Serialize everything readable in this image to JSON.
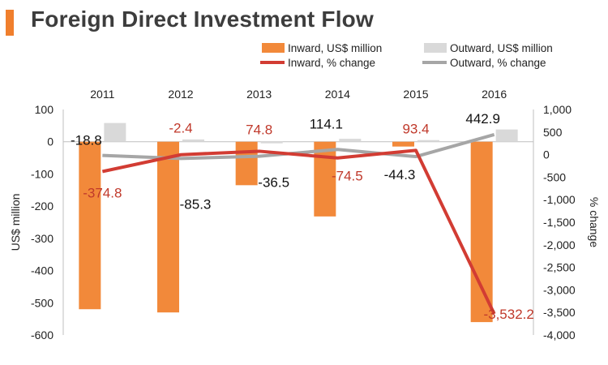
{
  "title": "Foreign Direct Investment Flow",
  "colors": {
    "accent": "#f07f2d",
    "inward_bar": "#f2893a",
    "outward_bar": "#d9d9d9",
    "inward_line": "#d23c33",
    "outward_line": "#a6a6a6",
    "inward_label": "#c0392b",
    "text": "#222222"
  },
  "chart_data": {
    "type": "bar",
    "categories": [
      "2011",
      "2012",
      "2013",
      "2014",
      "2015",
      "2016"
    ],
    "series": [
      {
        "name": "Inward, US$ million",
        "kind": "bar",
        "axis": "left",
        "values": [
          -520,
          -530,
          -135,
          -232,
          -15,
          -560
        ]
      },
      {
        "name": "Outward, US$ million",
        "kind": "bar",
        "axis": "left",
        "values": [
          58,
          7,
          -5,
          9,
          5,
          38
        ]
      },
      {
        "name": "Inward, % change",
        "kind": "line",
        "axis": "right",
        "values": [
          -374.8,
          -2.4,
          74.8,
          -74.5,
          93.4,
          -3532.2
        ],
        "labels": [
          "-374.8",
          "-2.4",
          "74.8",
          "-74.5",
          "93.4",
          "-3,532.2"
        ]
      },
      {
        "name": "Outward, % change",
        "kind": "line",
        "axis": "right",
        "values": [
          -18.8,
          -85.3,
          -36.5,
          114.1,
          -44.3,
          442.9
        ],
        "labels": [
          "-18.8",
          "-85.3",
          "-36.5",
          "114.1",
          "-44.3",
          "442.9"
        ]
      }
    ],
    "ylabel": "US$ million",
    "y2label": "% change",
    "ylim": [
      -600,
      100
    ],
    "y2lim": [
      -4000,
      1000
    ],
    "yticks": [
      "100",
      "0",
      "-100",
      "-200",
      "-300",
      "-400",
      "-500",
      "-600"
    ],
    "ytick_values": [
      100,
      0,
      -100,
      -200,
      -300,
      -400,
      -500,
      -600
    ],
    "y2ticks": [
      "1,000",
      "500",
      "0",
      "-500",
      "-1,000",
      "-1,500",
      "-2,000",
      "-2,500",
      "-3,000",
      "-3,500",
      "-4,000"
    ],
    "y2tick_values": [
      1000,
      500,
      0,
      -500,
      -1000,
      -1500,
      -2000,
      -2500,
      -3000,
      -3500,
      -4000
    ],
    "x_axis_position": "top",
    "grid": false,
    "legend_position": "top-right"
  }
}
